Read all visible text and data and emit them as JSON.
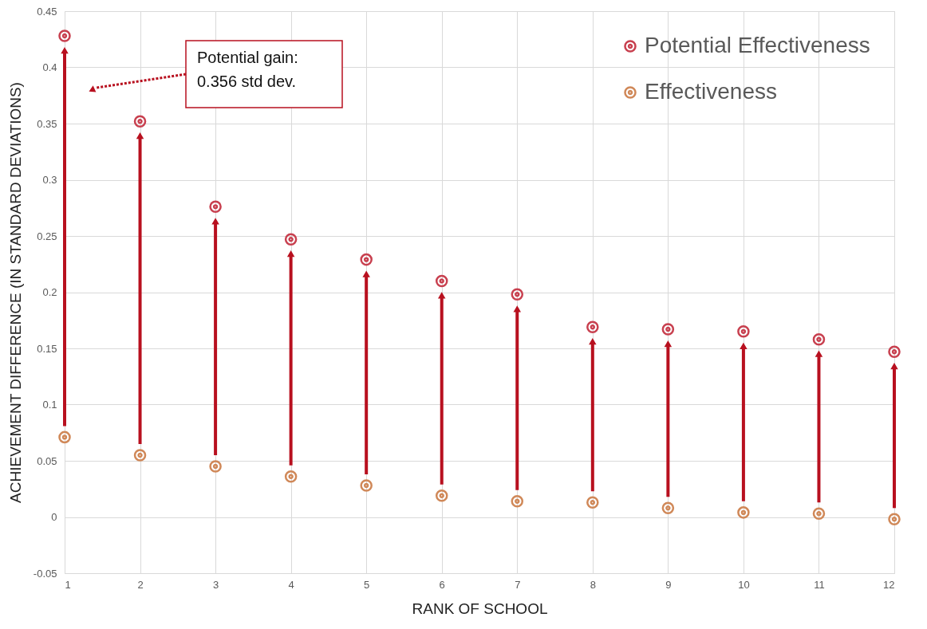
{
  "chart_data": {
    "type": "scatter",
    "xlabel": "RANK OF SCHOOL",
    "ylabel": "ACHIEVEMENT DIFFERENCE (IN STANDARD DEVIATIONS)",
    "x": [
      1,
      2,
      3,
      4,
      5,
      6,
      7,
      8,
      9,
      10,
      11,
      12
    ],
    "series": [
      {
        "name": "Potential Effectiveness",
        "color": "#c8404f",
        "values": [
          0.428,
          0.352,
          0.276,
          0.247,
          0.229,
          0.21,
          0.198,
          0.169,
          0.167,
          0.165,
          0.158,
          0.147
        ]
      },
      {
        "name": "Effectiveness",
        "color": "#d08858",
        "values": [
          0.071,
          0.055,
          0.045,
          0.036,
          0.028,
          0.019,
          0.014,
          0.013,
          0.008,
          0.004,
          0.003,
          -0.002
        ]
      }
    ],
    "xlim": [
      1,
      12
    ],
    "xticks": [
      1,
      2,
      3,
      4,
      5,
      6,
      7,
      8,
      9,
      10,
      11,
      12
    ],
    "ylim": [
      -0.05,
      0.45
    ],
    "yticks": [
      -0.05,
      0,
      0.05,
      0.1,
      0.15,
      0.2,
      0.25,
      0.3,
      0.35,
      0.4,
      0.45
    ],
    "annotations": [
      "Potential gain:\n0.356 std dev."
    ],
    "grid": true,
    "legend": "top right",
    "marker": "circle"
  }
}
